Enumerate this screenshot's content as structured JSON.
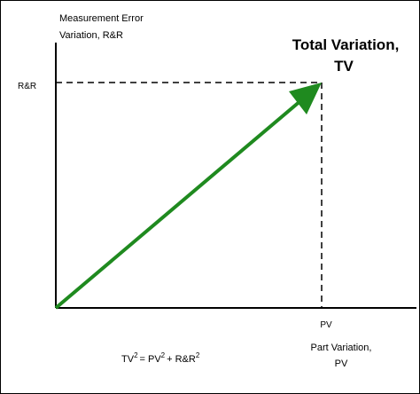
{
  "y_axis_label": {
    "lines": [
      "Measurement Error",
      "Variation, R&R"
    ]
  },
  "title": {
    "lines": [
      "Total Variation,",
      "TV"
    ]
  },
  "y_tick_label": "R&R",
  "x_tick_label": "PV",
  "x_axis_label": {
    "lines": [
      "Part Variation,",
      "PV"
    ]
  },
  "formula": {
    "parts": [
      "TV",
      "2",
      "= PV",
      "2",
      "+ R&R",
      "2"
    ]
  }
}
